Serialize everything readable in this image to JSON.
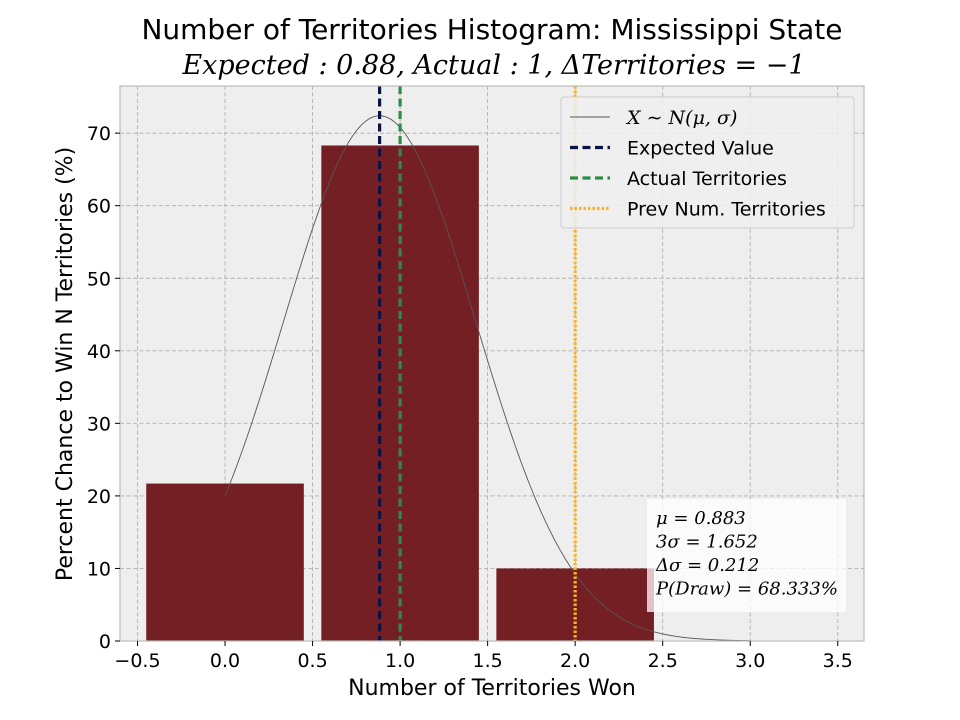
{
  "chart_data": {
    "type": "bar",
    "title": "Number of Territories Histogram: Mississippi State",
    "subtitle": "Expected : 0.88, Actual : 1, ΔTerritories = −1",
    "xlabel": "Number of Territories Won",
    "ylabel": "Percent Chance to Win N Territories (%)",
    "xlim": [
      -0.6,
      3.65
    ],
    "ylim": [
      0,
      76.5
    ],
    "xticks": [
      -0.5,
      0.0,
      0.5,
      1.0,
      1.5,
      2.0,
      2.5,
      3.0,
      3.5
    ],
    "xtick_labels": [
      "−0.5",
      "0.0",
      "0.5",
      "1.0",
      "1.5",
      "2.0",
      "2.5",
      "3.0",
      "3.5"
    ],
    "yticks": [
      0,
      10,
      20,
      30,
      40,
      50,
      60,
      70
    ],
    "ytick_labels": [
      "0",
      "10",
      "20",
      "30",
      "40",
      "50",
      "60",
      "70"
    ],
    "grid": true,
    "bar_width": 0.9,
    "bars": {
      "x": [
        0,
        1,
        2
      ],
      "values": [
        21.7,
        68.3,
        10.0
      ],
      "color": "#731f24"
    },
    "normal_curve": {
      "mu": 0.883,
      "sigma": 0.5507,
      "peak": 72.4,
      "color": "#555555"
    },
    "vlines": [
      {
        "x": 0.883,
        "color": "#0b1345",
        "style": "dashed"
      },
      {
        "x": 1.0,
        "color": "#2e8b45",
        "style": "dashed"
      },
      {
        "x": 2.0,
        "color": "#ffb21e",
        "style": "dotted"
      }
    ],
    "legend": {
      "position": "upper right",
      "entries": [
        {
          "label": "X ∼ N(μ, σ)",
          "style": "thin",
          "color": "#555555",
          "math": true
        },
        {
          "label": "Expected Value",
          "style": "dashed",
          "color": "#0b1345"
        },
        {
          "label": "Actual Territories",
          "style": "dashed",
          "color": "#2e8b45"
        },
        {
          "label": "Prev Num. Territories",
          "style": "dotted",
          "color": "#ffb21e"
        }
      ]
    },
    "stats_box": [
      "μ = 0.883",
      "3σ = 1.652",
      "Δσ = 0.212",
      "P(Draw) = 68.333%"
    ],
    "colors": {
      "plot_bg": "#eeeeee",
      "grid": "#b0b0b0",
      "frame": "#bcbcbc"
    }
  }
}
